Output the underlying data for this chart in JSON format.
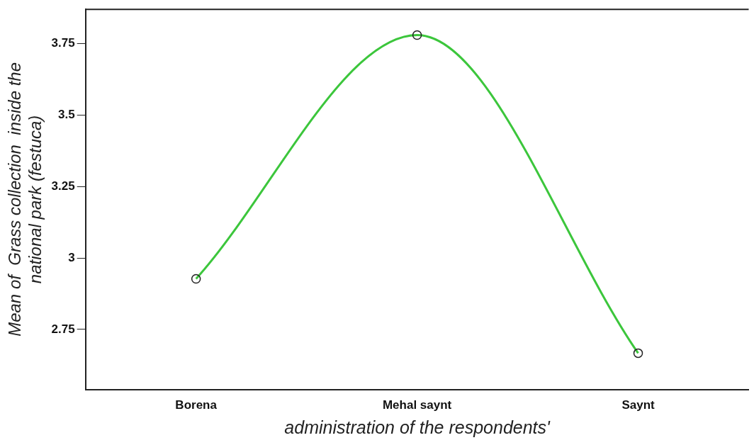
{
  "chart_data": {
    "type": "line",
    "xlabel": "administration of the respondents'",
    "ylabel": "Mean of  Grass collection  inside the\nnational park (festuca)",
    "categories": [
      "Borena",
      "Mehal saynt",
      "Saynt"
    ],
    "series": [
      {
        "color": "#3cc63c",
        "values": [
          2.927,
          3.78,
          2.667
        ]
      }
    ],
    "ylim": [
      2.54,
      3.87
    ],
    "yticks": [
      2.75,
      3,
      3.25,
      3.5,
      3.75
    ],
    "grid": false,
    "legend": false,
    "marker": "circle",
    "line_style": "solid"
  }
}
